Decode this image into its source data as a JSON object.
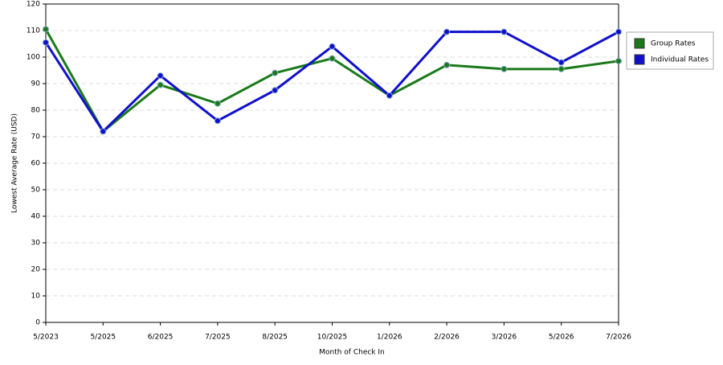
{
  "chart_data": {
    "type": "line",
    "x_label": "Month of Check In",
    "y_label": "Lowest Average Rate (USD)",
    "categories": [
      "5/2023",
      "5/2025",
      "6/2025",
      "7/2025",
      "8/2025",
      "10/2025",
      "1/2026",
      "2/2026",
      "3/2026",
      "5/2026",
      "7/2026"
    ],
    "series": [
      {
        "name": "Group Rates",
        "color": "#1a7a1a",
        "values": [
          110.5,
          72,
          89.5,
          82.5,
          94,
          99.5,
          85.5,
          97,
          95.5,
          95.5,
          98.5
        ]
      },
      {
        "name": "Individual Rates",
        "color": "#1010cc",
        "values": [
          105.5,
          72,
          93,
          76,
          87.5,
          104,
          85.5,
          109.5,
          109.5,
          98,
          109.5
        ]
      }
    ],
    "ylim": [
      0,
      120
    ],
    "yticks": [
      0,
      10,
      20,
      30,
      40,
      50,
      60,
      70,
      80,
      90,
      100,
      110,
      120
    ],
    "grid": true,
    "legend": "right"
  }
}
